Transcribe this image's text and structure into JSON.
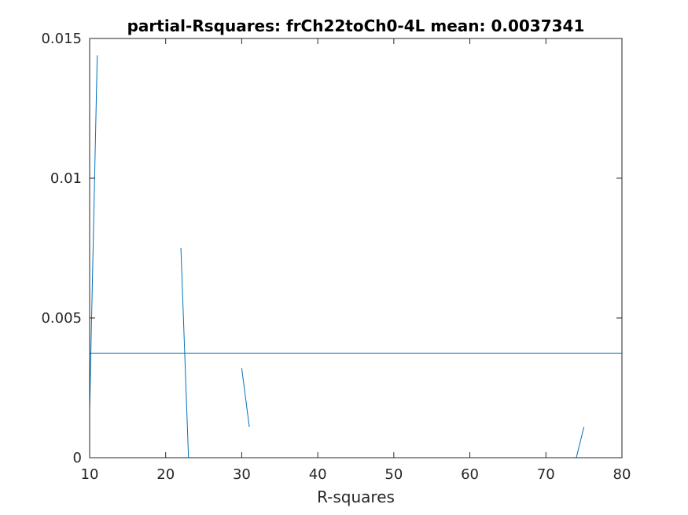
{
  "chart_data": {
    "type": "line",
    "title": "partial-Rsquares: frCh22toCh0-4L mean: 0.0037341",
    "xlabel": "R-squares",
    "ylabel": "",
    "xlim": [
      10,
      80
    ],
    "ylim": [
      0,
      0.015
    ],
    "xticks": [
      10,
      20,
      30,
      40,
      50,
      60,
      70,
      80
    ],
    "xtick_labels": [
      "10",
      "20",
      "30",
      "40",
      "50",
      "60",
      "70",
      "80"
    ],
    "yticks": [
      0,
      0.005,
      0.01,
      0.015
    ],
    "ytick_labels": [
      "0",
      "0.005",
      "0.01",
      "0.015"
    ],
    "grid": false,
    "box": true,
    "series_color": "#0072BD",
    "series": [
      {
        "x": [
          10,
          11
        ],
        "y": [
          0.0017,
          0.0144
        ]
      },
      {
        "x": [
          22,
          23
        ],
        "y": [
          0.0075,
          0.0
        ]
      },
      {
        "x": [
          30,
          31
        ],
        "y": [
          0.0032,
          0.0011
        ]
      },
      {
        "x": [
          74,
          75
        ],
        "y": [
          0.0,
          0.0011
        ]
      }
    ],
    "mean_line": {
      "y": 0.0037341
    }
  }
}
